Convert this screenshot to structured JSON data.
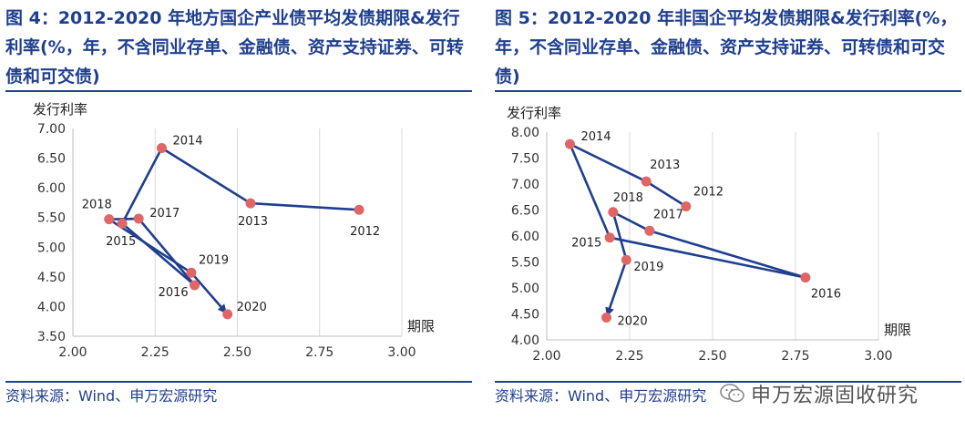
{
  "charts": [
    {
      "title": "图 4：2012-2020 年地方国企产业债平均发债期限&发行利率(%，年，不含同业存单、金融债、资产支持证券、可转债和可交债)",
      "source": "资料来源：Wind、申万宏源研究"
    },
    {
      "title": "图 5：2012-2020 年非国企平均发债期限&发行利率(%，年，不含同业存单、金融债、资产支持证券、可转债和可交债)",
      "source": "资料来源：Wind、申万宏源研究"
    }
  ],
  "chart_data": [
    {
      "type": "scatter",
      "xlabel": "期限",
      "ylabel": "发行利率",
      "xlim": [
        2.0,
        3.0
      ],
      "ylim": [
        3.5,
        7.0
      ],
      "xticks": [
        "2.00",
        "2.25",
        "2.50",
        "2.75",
        "3.00"
      ],
      "yticks": [
        "3.50",
        "4.00",
        "4.50",
        "5.00",
        "5.50",
        "6.00",
        "6.50",
        "7.00"
      ],
      "grid": "vertical",
      "connected": true,
      "arrow_end": true,
      "point_color": "#e06666",
      "line_color": "#1f3f8f",
      "points": [
        {
          "label": "2012",
          "x": 2.87,
          "y": 5.63
        },
        {
          "label": "2013",
          "x": 2.54,
          "y": 5.74
        },
        {
          "label": "2014",
          "x": 2.27,
          "y": 6.67
        },
        {
          "label": "2015",
          "x": 2.15,
          "y": 5.4
        },
        {
          "label": "2016",
          "x": 2.37,
          "y": 4.36
        },
        {
          "label": "2017",
          "x": 2.2,
          "y": 5.48
        },
        {
          "label": "2018",
          "x": 2.11,
          "y": 5.47
        },
        {
          "label": "2019",
          "x": 2.36,
          "y": 4.57
        },
        {
          "label": "2020",
          "x": 2.47,
          "y": 3.87
        }
      ]
    },
    {
      "type": "scatter",
      "xlabel": "期限",
      "ylabel": "发行利率",
      "xlim": [
        2.0,
        3.0
      ],
      "ylim": [
        4.0,
        8.0
      ],
      "xticks": [
        "2.00",
        "2.25",
        "2.50",
        "2.75",
        "3.00"
      ],
      "yticks": [
        "4.00",
        "4.50",
        "5.00",
        "5.50",
        "6.00",
        "6.50",
        "7.00",
        "7.50",
        "8.00"
      ],
      "grid": "vertical",
      "connected": true,
      "arrow_end": true,
      "point_color": "#e06666",
      "line_color": "#1f3f8f",
      "points": [
        {
          "label": "2012",
          "x": 2.42,
          "y": 6.57
        },
        {
          "label": "2013",
          "x": 2.3,
          "y": 7.05
        },
        {
          "label": "2014",
          "x": 2.07,
          "y": 7.77
        },
        {
          "label": "2015",
          "x": 2.19,
          "y": 5.97
        },
        {
          "label": "2016",
          "x": 2.78,
          "y": 5.2
        },
        {
          "label": "2017",
          "x": 2.31,
          "y": 6.1
        },
        {
          "label": "2018",
          "x": 2.2,
          "y": 6.46
        },
        {
          "label": "2019",
          "x": 2.24,
          "y": 5.54
        },
        {
          "label": "2020",
          "x": 2.18,
          "y": 4.43
        }
      ]
    }
  ],
  "watermark": {
    "text": "申万宏源固收研究",
    "icon": "wechat-icon"
  }
}
